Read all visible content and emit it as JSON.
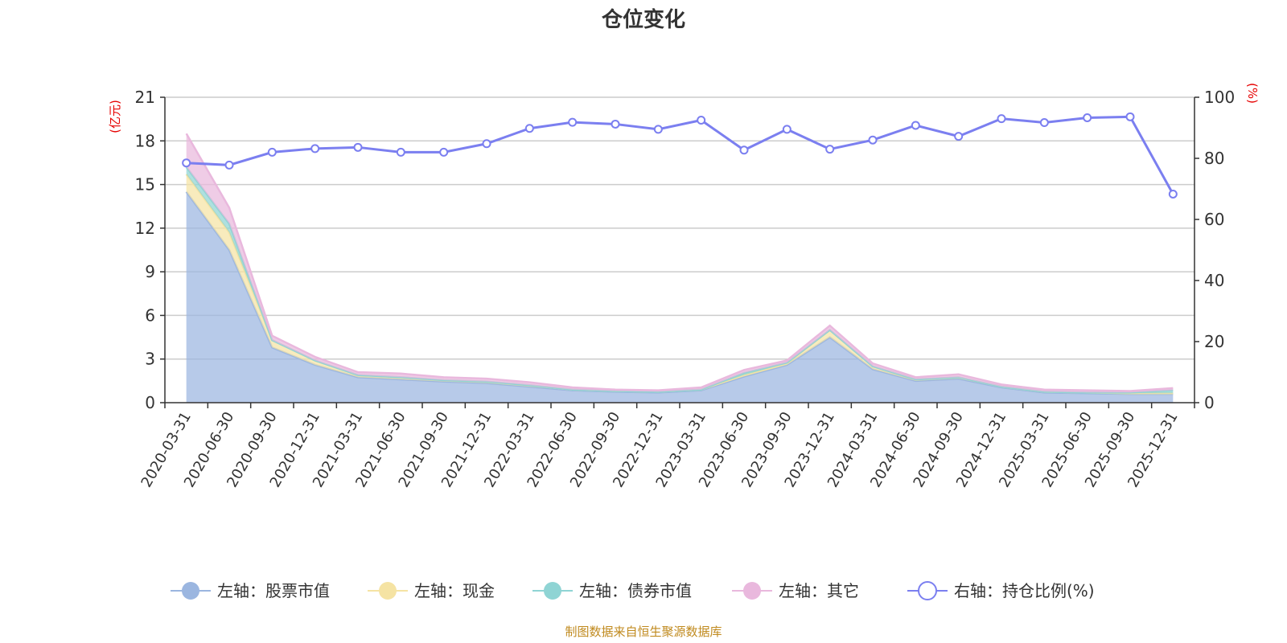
{
  "chart_data": {
    "type": "area",
    "title": "仓位变化",
    "x": [
      "2020-03-31",
      "2020-06-30",
      "2020-09-30",
      "2020-12-31",
      "2021-03-31",
      "2021-06-30",
      "2021-09-30",
      "2021-12-31",
      "2022-03-31",
      "2022-06-30",
      "2022-09-30",
      "2022-12-31",
      "2023-03-31",
      "2023-06-30",
      "2023-09-30",
      "2023-12-31",
      "2024-03-31",
      "2024-06-30",
      "2024-09-30",
      "2024-12-31",
      "2025-03-31",
      "2025-06-30",
      "2025-09-30",
      "2025-12-31"
    ],
    "left_axis": {
      "unit": "(亿元)",
      "ylim": [
        0,
        21
      ],
      "ticks": [
        0,
        3,
        6,
        9,
        12,
        15,
        18,
        21
      ]
    },
    "right_axis": {
      "unit": "(%)",
      "ylim": [
        0,
        100
      ],
      "ticks": [
        0,
        20,
        40,
        60,
        80,
        100
      ]
    },
    "series": [
      {
        "name": "左轴：股票市值",
        "axis": "left",
        "type": "stacked-area",
        "color": "#9bb6e0",
        "values": [
          14.5,
          10.5,
          3.8,
          2.6,
          1.75,
          1.6,
          1.45,
          1.35,
          1.1,
          0.85,
          0.75,
          0.7,
          0.85,
          1.8,
          2.6,
          4.5,
          2.3,
          1.5,
          1.65,
          1.05,
          0.7,
          0.65,
          0.6,
          0.6
        ]
      },
      {
        "name": "左轴：现金",
        "axis": "left",
        "type": "stacked-area",
        "color": "#f5e3a3",
        "values": [
          1.2,
          1.2,
          0.5,
          0.3,
          0.15,
          0.15,
          0.1,
          0.1,
          0.1,
          0.05,
          0.05,
          0.05,
          0.05,
          0.1,
          0.1,
          0.5,
          0.2,
          0.1,
          0.1,
          0.05,
          0.05,
          0.05,
          0.05,
          0.05
        ]
      },
      {
        "name": "左轴：债券市值",
        "axis": "left",
        "type": "stacked-area",
        "color": "#8fd4d4",
        "values": [
          0.5,
          0.6,
          0.0,
          0.0,
          0.0,
          0.0,
          0.0,
          0.0,
          0.0,
          0.0,
          0.0,
          0.0,
          0.0,
          0.15,
          0.05,
          0.0,
          0.0,
          0.0,
          0.0,
          0.0,
          0.0,
          0.0,
          0.05,
          0.2
        ]
      },
      {
        "name": "左轴：其它",
        "axis": "left",
        "type": "stacked-area",
        "color": "#e9b8dd",
        "values": [
          2.3,
          1.1,
          0.3,
          0.25,
          0.2,
          0.25,
          0.2,
          0.2,
          0.2,
          0.15,
          0.1,
          0.1,
          0.15,
          0.2,
          0.15,
          0.3,
          0.2,
          0.15,
          0.2,
          0.15,
          0.15,
          0.15,
          0.1,
          0.15
        ]
      },
      {
        "name": "右轴：持仓比例(%)",
        "axis": "right",
        "type": "line",
        "color": "#7b7ff0",
        "values": [
          78.5,
          77.8,
          82.0,
          83.2,
          83.6,
          82.0,
          82.0,
          84.8,
          89.8,
          91.8,
          91.2,
          89.5,
          92.5,
          82.7,
          89.5,
          83.0,
          86.0,
          90.8,
          87.2,
          93.0,
          91.7,
          93.3,
          93.6,
          68.3
        ]
      }
    ],
    "legend": "bottom-center",
    "grid": true
  },
  "source": "制图数据来自恒生聚源数据库"
}
